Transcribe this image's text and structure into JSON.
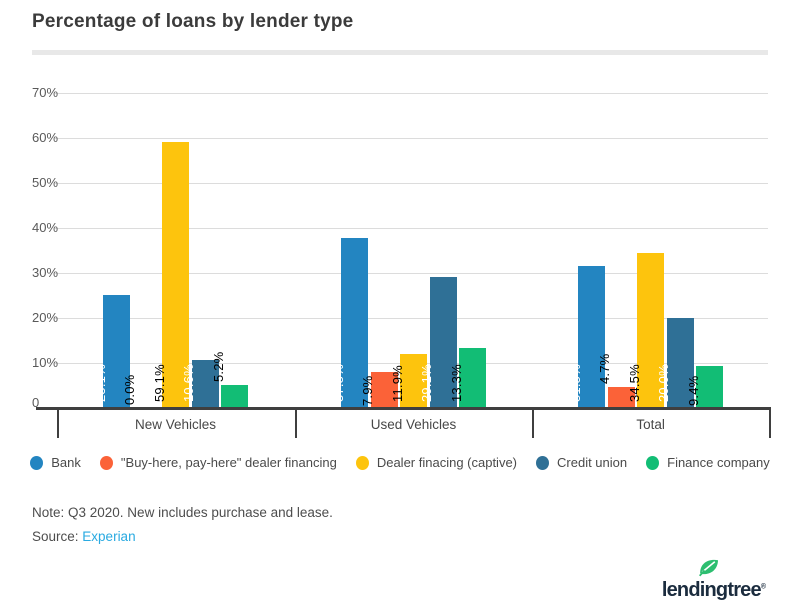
{
  "title": "Percentage of loans by lender type",
  "chart_data": {
    "type": "bar",
    "title": "Percentage of loans by lender type",
    "categories": [
      "New Vehicles",
      "Used Vehicles",
      "Total"
    ],
    "series": [
      {
        "name": "Bank",
        "color": "#2385c1",
        "label_color": "#ffffff",
        "values": [
          25.1,
          37.8,
          31.5
        ]
      },
      {
        "name": "\"Buy-here, pay-here\" dealer financing",
        "color": "#fb6238",
        "label_color": "#000000",
        "values": [
          0.0,
          7.9,
          4.7
        ]
      },
      {
        "name": "Dealer finacing (captive)",
        "color": "#fdc40d",
        "label_color": "#000000",
        "values": [
          59.1,
          11.9,
          34.5
        ]
      },
      {
        "name": "Credit union",
        "color": "#2f7096",
        "label_color": "#ffffff",
        "values": [
          10.6,
          29.1,
          20.0
        ]
      },
      {
        "name": "Finance company",
        "color": "#12bd75",
        "label_color": "#000000",
        "values": [
          5.2,
          13.3,
          9.4
        ]
      }
    ],
    "y_axis": {
      "tick_labels": [
        "70%",
        "60%",
        "50%",
        "40%",
        "30%",
        "20%",
        "10%",
        "0"
      ],
      "min": 0,
      "max": 70,
      "grid": true
    },
    "data_labels": [
      [
        "25.1%",
        "37.8%",
        "31.5%"
      ],
      [
        "0.0%",
        "7.9%",
        "4.7%"
      ],
      [
        "59.1%",
        "11.9%",
        "34.5%"
      ],
      [
        "10.6%",
        "29.1%",
        "20.0%"
      ],
      [
        "5.2%",
        "13.3%",
        "9.4%"
      ]
    ],
    "legend_position": "bottom"
  },
  "note": "Note: Q3 2020. New includes purchase and lease.",
  "source": {
    "label": "Source:",
    "link_text": "Experian",
    "link_color": "#29aae1"
  },
  "logo": {
    "text": "lendingtree",
    "reg_mark": "®",
    "navy": "#1b2c3e",
    "leaf_green": "#2dbe70"
  },
  "style_colors": {
    "gridline": "#dcdcdc",
    "axis": "#3f3f3f",
    "divider": "#e8e8e8"
  }
}
